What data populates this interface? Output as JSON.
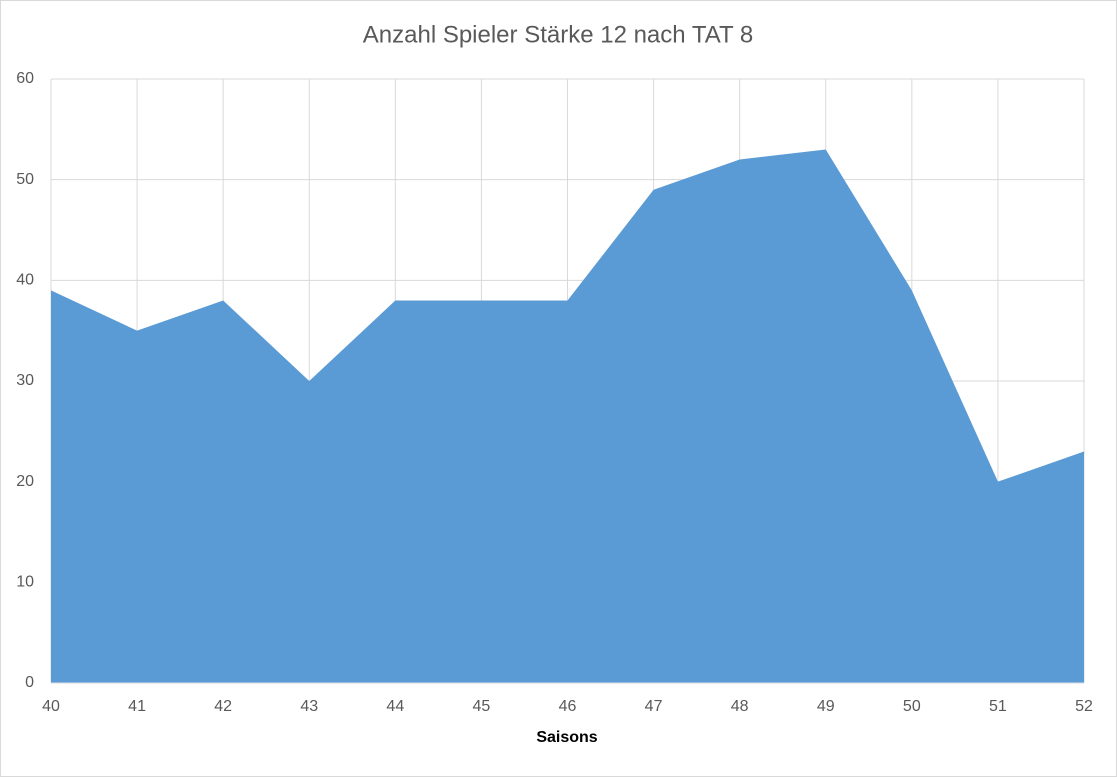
{
  "chart_data": {
    "type": "area",
    "title": "Anzahl Spieler Stärke 12 nach TAT 8",
    "x_label": "Saisons",
    "categories": [
      "40",
      "41",
      "42",
      "43",
      "44",
      "45",
      "46",
      "47",
      "48",
      "49",
      "50",
      "51",
      "52"
    ],
    "values": [
      39,
      35,
      38,
      30,
      38,
      38,
      38,
      49,
      52,
      53,
      39,
      20,
      23
    ],
    "color": "#5b9bd5",
    "ylim": [
      0,
      60
    ],
    "yticks": [
      0,
      10,
      20,
      30,
      40,
      50,
      60
    ],
    "grid": true
  }
}
